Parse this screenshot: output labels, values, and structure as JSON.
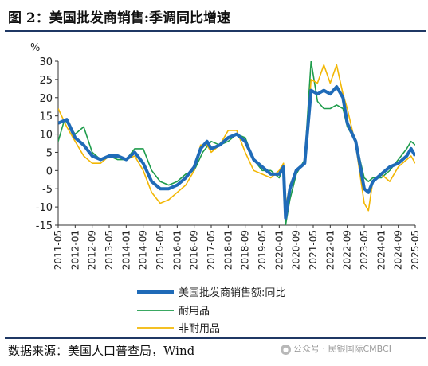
{
  "header": {
    "title": "图 2：美国批发商销售:季调同比增速"
  },
  "footer": {
    "source": "数据来源：美国人口普查局，Wind",
    "watermark_text": "公众号 · 民银国际CMBCI",
    "watermark_icon": "wechat-icon"
  },
  "chart_data": {
    "type": "line",
    "ylabel": "%",
    "ylim": [
      -15,
      30
    ],
    "yticks": [
      -15,
      -10,
      -5,
      0,
      5,
      10,
      15,
      20,
      25,
      30
    ],
    "x_range": [
      "2011-05",
      "2025-05"
    ],
    "xticks": [
      "2011-05",
      "2012-01",
      "2012-09",
      "2013-05",
      "2014-01",
      "2014-09",
      "2015-05",
      "2016-01",
      "2016-09",
      "2017-05",
      "2018-01",
      "2018-09",
      "2019-05",
      "2020-01",
      "2020-09",
      "2021-05",
      "2022-01",
      "2022-09",
      "2023-05",
      "2024-01",
      "2024-09",
      "2025-05"
    ],
    "legend_position": "bottom",
    "grid": false,
    "series": [
      {
        "name": "美国批发商销售额:同比",
        "color": "#1f6bb8",
        "points": [
          [
            "2011-05",
            13
          ],
          [
            "2011-09",
            14
          ],
          [
            "2012-01",
            9
          ],
          [
            "2012-05",
            7
          ],
          [
            "2012-09",
            4
          ],
          [
            "2013-01",
            3
          ],
          [
            "2013-05",
            4
          ],
          [
            "2013-09",
            4
          ],
          [
            "2014-01",
            3
          ],
          [
            "2014-05",
            5
          ],
          [
            "2014-09",
            2
          ],
          [
            "2015-01",
            -3
          ],
          [
            "2015-05",
            -5
          ],
          [
            "2015-09",
            -5
          ],
          [
            "2016-01",
            -4
          ],
          [
            "2016-05",
            -2
          ],
          [
            "2016-09",
            1
          ],
          [
            "2016-12",
            6
          ],
          [
            "2017-03",
            8
          ],
          [
            "2017-05",
            6
          ],
          [
            "2017-09",
            7
          ],
          [
            "2018-01",
            9
          ],
          [
            "2018-05",
            10
          ],
          [
            "2018-09",
            8
          ],
          [
            "2019-01",
            3
          ],
          [
            "2019-05",
            1
          ],
          [
            "2019-09",
            -1
          ],
          [
            "2020-01",
            -1
          ],
          [
            "2020-03",
            1
          ],
          [
            "2020-04",
            -13
          ],
          [
            "2020-06",
            -5
          ],
          [
            "2020-09",
            0
          ],
          [
            "2021-01",
            2
          ],
          [
            "2021-04",
            22
          ],
          [
            "2021-07",
            21
          ],
          [
            "2021-10",
            22
          ],
          [
            "2022-01",
            21
          ],
          [
            "2022-04",
            23
          ],
          [
            "2022-07",
            20
          ],
          [
            "2022-09",
            13
          ],
          [
            "2023-01",
            8
          ],
          [
            "2023-05",
            -5
          ],
          [
            "2023-07",
            -6
          ],
          [
            "2023-09",
            -3
          ],
          [
            "2024-01",
            -1
          ],
          [
            "2024-05",
            1
          ],
          [
            "2024-09",
            2
          ],
          [
            "2025-01",
            4
          ],
          [
            "2025-03",
            6
          ],
          [
            "2025-05",
            4
          ]
        ]
      },
      {
        "name": "耐用品",
        "color": "#1e9c4b",
        "points": [
          [
            "2011-05",
            8
          ],
          [
            "2011-08",
            14
          ],
          [
            "2012-01",
            10
          ],
          [
            "2012-05",
            12
          ],
          [
            "2012-09",
            5
          ],
          [
            "2013-01",
            3
          ],
          [
            "2013-05",
            4
          ],
          [
            "2013-09",
            3
          ],
          [
            "2014-01",
            3
          ],
          [
            "2014-05",
            6
          ],
          [
            "2014-09",
            6
          ],
          [
            "2015-01",
            0
          ],
          [
            "2015-05",
            -3
          ],
          [
            "2015-09",
            -4
          ],
          [
            "2016-01",
            -3
          ],
          [
            "2016-05",
            -1
          ],
          [
            "2016-09",
            0
          ],
          [
            "2017-01",
            5
          ],
          [
            "2017-05",
            8
          ],
          [
            "2017-09",
            7
          ],
          [
            "2018-01",
            8
          ],
          [
            "2018-05",
            10
          ],
          [
            "2018-09",
            9
          ],
          [
            "2019-01",
            3
          ],
          [
            "2019-05",
            0
          ],
          [
            "2019-09",
            0
          ],
          [
            "2020-01",
            -2
          ],
          [
            "2020-03",
            1
          ],
          [
            "2020-04",
            -15
          ],
          [
            "2020-06",
            -8
          ],
          [
            "2020-09",
            -1
          ],
          [
            "2021-01",
            3
          ],
          [
            "2021-04",
            30
          ],
          [
            "2021-07",
            19
          ],
          [
            "2021-10",
            17
          ],
          [
            "2022-01",
            17
          ],
          [
            "2022-04",
            18
          ],
          [
            "2022-07",
            17
          ],
          [
            "2022-09",
            12
          ],
          [
            "2023-01",
            8
          ],
          [
            "2023-05",
            -2
          ],
          [
            "2023-07",
            -3
          ],
          [
            "2023-09",
            -2
          ],
          [
            "2024-01",
            -2
          ],
          [
            "2024-05",
            0
          ],
          [
            "2024-09",
            3
          ],
          [
            "2025-01",
            6
          ],
          [
            "2025-03",
            8
          ],
          [
            "2025-05",
            7
          ]
        ]
      },
      {
        "name": "非耐用品",
        "color": "#f2b705",
        "points": [
          [
            "2011-05",
            17
          ],
          [
            "2011-09",
            12
          ],
          [
            "2012-01",
            8
          ],
          [
            "2012-05",
            4
          ],
          [
            "2012-09",
            2
          ],
          [
            "2013-01",
            2
          ],
          [
            "2013-05",
            4
          ],
          [
            "2013-09",
            4
          ],
          [
            "2014-01",
            3
          ],
          [
            "2014-05",
            4
          ],
          [
            "2014-09",
            0
          ],
          [
            "2015-01",
            -6
          ],
          [
            "2015-05",
            -9
          ],
          [
            "2015-09",
            -8
          ],
          [
            "2016-01",
            -6
          ],
          [
            "2016-05",
            -4
          ],
          [
            "2016-09",
            0
          ],
          [
            "2016-12",
            7
          ],
          [
            "2017-03",
            7
          ],
          [
            "2017-05",
            5
          ],
          [
            "2017-09",
            7
          ],
          [
            "2018-01",
            11
          ],
          [
            "2018-05",
            11
          ],
          [
            "2018-09",
            5
          ],
          [
            "2019-01",
            0
          ],
          [
            "2019-05",
            -1
          ],
          [
            "2019-09",
            -2
          ],
          [
            "2020-01",
            0
          ],
          [
            "2020-03",
            2
          ],
          [
            "2020-04",
            -10
          ],
          [
            "2020-06",
            -4
          ],
          [
            "2020-09",
            0
          ],
          [
            "2021-01",
            2
          ],
          [
            "2021-04",
            25
          ],
          [
            "2021-07",
            24
          ],
          [
            "2021-10",
            29
          ],
          [
            "2022-01",
            24
          ],
          [
            "2022-04",
            29
          ],
          [
            "2022-07",
            21
          ],
          [
            "2022-09",
            17
          ],
          [
            "2023-01",
            7
          ],
          [
            "2023-05",
            -9
          ],
          [
            "2023-07",
            -11
          ],
          [
            "2023-09",
            -3
          ],
          [
            "2024-01",
            -1
          ],
          [
            "2024-05",
            -3
          ],
          [
            "2024-09",
            1
          ],
          [
            "2025-01",
            3
          ],
          [
            "2025-03",
            4
          ],
          [
            "2025-05",
            2
          ]
        ]
      }
    ]
  }
}
